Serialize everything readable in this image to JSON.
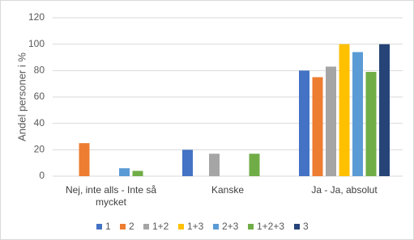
{
  "chart_data": {
    "type": "bar",
    "y_label": "Andel personer i %",
    "categories": [
      "Nej, inte alls - Inte så mycket",
      "Kanske",
      "Ja - Ja, absolut"
    ],
    "series": [
      {
        "name": "1",
        "color": "#4472c4",
        "values": [
          0,
          20,
          80
        ]
      },
      {
        "name": "2",
        "color": "#ed7d31",
        "values": [
          25,
          0,
          75
        ]
      },
      {
        "name": "1+2",
        "color": "#a5a5a5",
        "values": [
          0,
          17,
          83
        ]
      },
      {
        "name": "1+3",
        "color": "#ffc000",
        "values": [
          0,
          0,
          100
        ]
      },
      {
        "name": "2+3",
        "color": "#5b9bd5",
        "values": [
          6,
          0,
          94
        ]
      },
      {
        "name": "1+2+3",
        "color": "#70ad47",
        "values": [
          4,
          17,
          79
        ]
      },
      {
        "name": "3",
        "color": "#264478",
        "values": [
          0,
          0,
          100
        ]
      }
    ],
    "ylim": [
      0,
      120
    ],
    "yticks": [
      0,
      20,
      40,
      60,
      80,
      100,
      120
    ],
    "grid": true,
    "legend": "bottom"
  }
}
